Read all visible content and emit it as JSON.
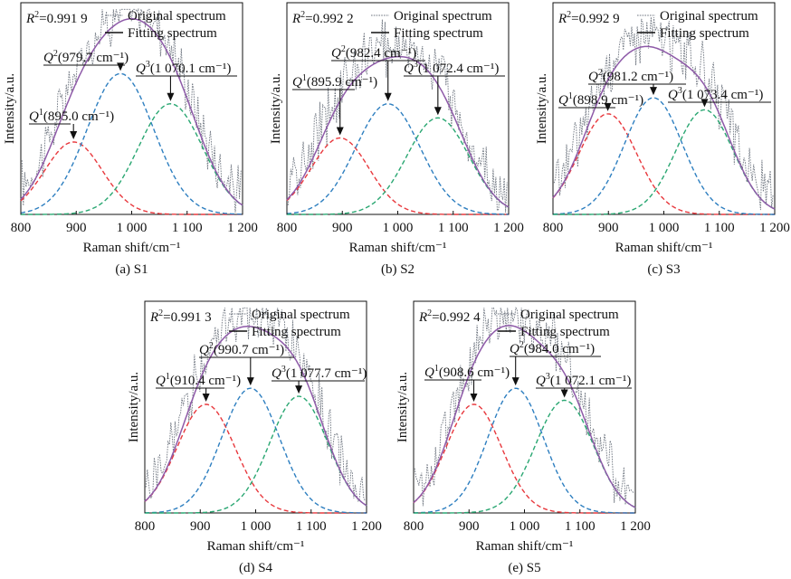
{
  "chart_data": [
    {
      "type": "line",
      "caption": "(a) S1",
      "r2_label": "=0.991 9",
      "xlabel": "Raman shift/cm⁻¹",
      "ylabel": "Intensity/a.u.",
      "xlim": [
        800,
        1200
      ],
      "x_ticks": [
        "800",
        "900",
        "1 000",
        "1 100",
        "1 200"
      ],
      "legend": [
        "Original spectrum",
        "Fitting spectrum"
      ],
      "peaks": [
        {
          "label": "Q",
          "sup": "1",
          "value": "(895.0 cm⁻¹)",
          "center": 895.0,
          "height": 0.36,
          "width": 52,
          "color": "#e8383d"
        },
        {
          "label": "Q",
          "sup": "2",
          "value": "(979.7 cm⁻¹)",
          "center": 979.7,
          "height": 0.7,
          "width": 60,
          "color": "#2e7fc0"
        },
        {
          "label": "Q",
          "sup": "3",
          "value": "(1 070.1 cm⁻¹)",
          "center": 1070.1,
          "height": 0.55,
          "width": 58,
          "color": "#2aa772"
        }
      ]
    },
    {
      "type": "line",
      "caption": "(b) S2",
      "r2_label": "=0.992 2",
      "xlabel": "Raman shift/cm⁻¹",
      "ylabel": "Intensity/a.u.",
      "xlim": [
        800,
        1200
      ],
      "x_ticks": [
        "800",
        "900",
        "1 000",
        "1 100",
        "1 200"
      ],
      "legend": [
        "Original spectrum",
        "Fitting spectrum"
      ],
      "peaks": [
        {
          "label": "Q",
          "sup": "1",
          "value": "(895.9 cm⁻¹)",
          "center": 895.9,
          "height": 0.38,
          "width": 52,
          "color": "#e8383d"
        },
        {
          "label": "Q",
          "sup": "2",
          "value": "(982.4 cm⁻¹)",
          "center": 982.4,
          "height": 0.55,
          "width": 58,
          "color": "#2e7fc0"
        },
        {
          "label": "Q",
          "sup": "3",
          "value": "(1 072.4 cm⁻¹)",
          "center": 1072.4,
          "height": 0.48,
          "width": 56,
          "color": "#2aa772"
        }
      ]
    },
    {
      "type": "line",
      "caption": "(c) S3",
      "r2_label": "=0.992 9",
      "xlabel": "Raman shift/cm⁻¹",
      "ylabel": "Intensity/a.u.",
      "xlim": [
        800,
        1200
      ],
      "x_ticks": [
        "800",
        "900",
        "1 000",
        "1 100",
        "1 200"
      ],
      "legend": [
        "Original spectrum",
        "Fitting spectrum"
      ],
      "peaks": [
        {
          "label": "Q",
          "sup": "1",
          "value": "(898.9 cm⁻¹)",
          "center": 898.9,
          "height": 0.5,
          "width": 52,
          "color": "#e8383d"
        },
        {
          "label": "Q",
          "sup": "2",
          "value": "(981.2 cm⁻¹)",
          "center": 981.2,
          "height": 0.58,
          "width": 52,
          "color": "#2e7fc0"
        },
        {
          "label": "Q",
          "sup": "3",
          "value": "(1 073.4 cm⁻¹)",
          "center": 1073.4,
          "height": 0.52,
          "width": 52,
          "color": "#2aa772"
        }
      ]
    },
    {
      "type": "line",
      "caption": "(d) S4",
      "r2_label": "=0.991 3",
      "xlabel": "Raman shift/cm⁻¹",
      "ylabel": "Intensity/a.u.",
      "xlim": [
        800,
        1200
      ],
      "x_ticks": [
        "800",
        "900",
        "1 000",
        "1 100",
        "1 200"
      ],
      "legend": [
        "Original spectrum",
        "Fitting spectrum"
      ],
      "peaks": [
        {
          "label": "Q",
          "sup": "1",
          "value": "(910.4 cm⁻¹)",
          "center": 910.4,
          "height": 0.54,
          "width": 52,
          "color": "#e8383d"
        },
        {
          "label": "Q",
          "sup": "2",
          "value": "(990.7 cm⁻¹)",
          "center": 990.7,
          "height": 0.62,
          "width": 52,
          "color": "#2e7fc0"
        },
        {
          "label": "Q",
          "sup": "3",
          "value": "(1 077.7 cm⁻¹)",
          "center": 1077.7,
          "height": 0.58,
          "width": 52,
          "color": "#2aa772"
        }
      ]
    },
    {
      "type": "line",
      "caption": "(e) S5",
      "r2_label": "=0.992 4",
      "xlabel": "Raman shift/cm⁻¹",
      "ylabel": "Intensity/a.u.",
      "xlim": [
        800,
        1200
      ],
      "x_ticks": [
        "800",
        "900",
        "1 000",
        "1 100",
        "1 200"
      ],
      "legend": [
        "Original spectrum",
        "Fitting spectrum"
      ],
      "peaks": [
        {
          "label": "Q",
          "sup": "1",
          "value": "(908.6 cm⁻¹)",
          "center": 908.6,
          "height": 0.54,
          "width": 50,
          "color": "#e8383d"
        },
        {
          "label": "Q",
          "sup": "2",
          "value": "(984.0 cm⁻¹)",
          "center": 984.0,
          "height": 0.62,
          "width": 50,
          "color": "#2e7fc0"
        },
        {
          "label": "Q",
          "sup": "3",
          "value": "(1 072.1 cm⁻¹)",
          "center": 1072.1,
          "height": 0.56,
          "width": 52,
          "color": "#2aa772"
        }
      ]
    }
  ],
  "colors": {
    "fit_line": "#8e5aa8",
    "original_line": "#6f7680",
    "axis": "#111111"
  }
}
